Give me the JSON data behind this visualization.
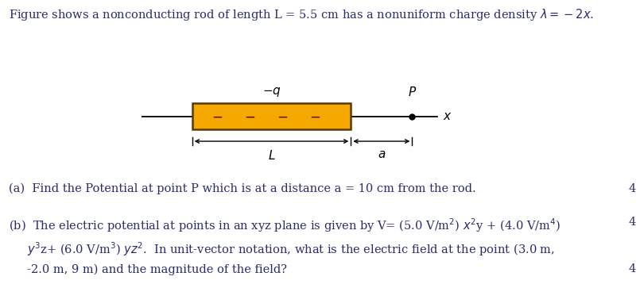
{
  "background_color": "#ffffff",
  "fig_width": 8.1,
  "fig_height": 3.58,
  "dpi": 100,
  "title_text": "Figure shows a nonconducting rod of length L = 5.5 cm has a nonuniform charge density $\\lambda = -2x$.",
  "title_fontsize": 10.5,
  "title_color": "#2a2a6e",
  "rod_color": "#f5a800",
  "rod_border_color": "#5a3a00",
  "text_color": "#2a2a6e",
  "font_size": 10.5,
  "part_a_text": "(a)  Find the Potential at point P which is at a distance a = 10 cm from the rod.",
  "part_a_mark": "4",
  "part_b_line1": "(b)  The electric potential at points in an xyz plane is given by V= (5.0 V/m$^2$) $x^2$y + (4.0 V/m$^4$)",
  "part_b_line2": "     $y^3$z+ (6.0 V/m$^3$) $yz^2$.  In unit-vector notation, what is the electric field at the point (3.0 m,",
  "part_b_line3": "     -2.0 m, 9 m) and the magnitude of the field?",
  "part_b_mark": "4"
}
